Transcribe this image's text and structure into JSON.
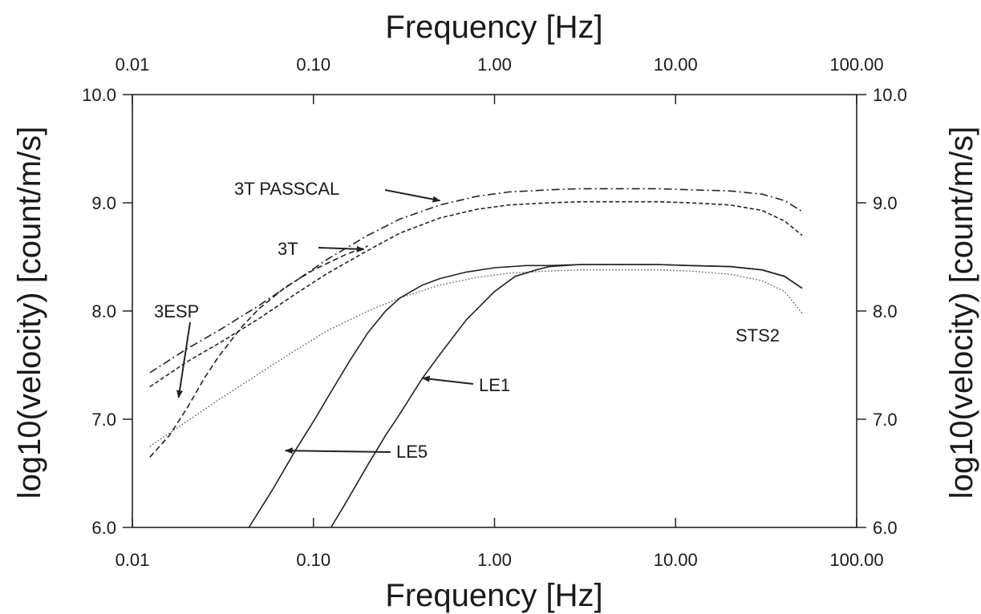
{
  "chart_data": {
    "type": "line",
    "xscale": "log",
    "xlim": [
      0.01,
      100
    ],
    "ylim": [
      6.0,
      10.0
    ],
    "grid": false,
    "x_ticks": [
      0.01,
      0.1,
      1,
      10,
      100
    ],
    "x_tick_labels": [
      "0.01",
      "0.10",
      "1.00",
      "10.00",
      "100.00"
    ],
    "y_ticks": [
      6,
      7,
      8,
      9,
      10
    ],
    "y_tick_labels": [
      "6.0",
      "7.0",
      "8.0",
      "9.0",
      "10.0"
    ],
    "xlabel": "Frequency [Hz]",
    "xlabel_top": "Frequency [Hz]",
    "ylabel": "log10(velocity) [count/m/s]",
    "ylabel_right": "log10(velocity) [count/m/s]",
    "series": [
      {
        "name": "3T PASSCAL",
        "line": "dashdot",
        "color": "#222222",
        "x": [
          0.0125,
          0.02,
          0.03,
          0.05,
          0.08,
          0.12,
          0.2,
          0.3,
          0.5,
          0.8,
          1.2,
          2,
          3,
          5,
          8,
          12,
          20,
          30,
          40,
          50
        ],
        "y": [
          7.43,
          7.65,
          7.82,
          8.05,
          8.28,
          8.48,
          8.7,
          8.85,
          8.98,
          9.06,
          9.1,
          9.12,
          9.13,
          9.13,
          9.13,
          9.12,
          9.11,
          9.08,
          9.02,
          8.92
        ]
      },
      {
        "name": "3T",
        "line": "dashed-fine",
        "color": "#222222",
        "x": [
          0.0125,
          0.02,
          0.03,
          0.05,
          0.08,
          0.12,
          0.2,
          0.3,
          0.5,
          0.8,
          1.2,
          2,
          3,
          5,
          8,
          12,
          20,
          30,
          40,
          50
        ],
        "y": [
          7.3,
          7.53,
          7.7,
          7.93,
          8.16,
          8.35,
          8.56,
          8.72,
          8.86,
          8.94,
          8.98,
          9.0,
          9.01,
          9.01,
          9.01,
          9.0,
          8.98,
          8.93,
          8.83,
          8.7
        ]
      },
      {
        "name": "3ESP",
        "line": "dashed",
        "color": "#222222",
        "x": [
          0.0125,
          0.016,
          0.02,
          0.025,
          0.03,
          0.04,
          0.05,
          0.07,
          0.1,
          0.15,
          0.2
        ],
        "y": [
          6.65,
          6.85,
          7.1,
          7.38,
          7.58,
          7.85,
          8.02,
          8.22,
          8.38,
          8.52,
          8.6
        ]
      },
      {
        "name": "STS2",
        "line": "dotted",
        "color": "#555555",
        "x": [
          0.0125,
          0.02,
          0.03,
          0.05,
          0.08,
          0.12,
          0.2,
          0.3,
          0.5,
          0.8,
          1.2,
          2,
          3,
          5,
          8,
          12,
          20,
          30,
          40,
          50
        ],
        "y": [
          6.75,
          6.98,
          7.18,
          7.42,
          7.64,
          7.82,
          8.0,
          8.12,
          8.24,
          8.31,
          8.35,
          8.37,
          8.38,
          8.38,
          8.38,
          8.37,
          8.34,
          8.28,
          8.18,
          7.98
        ]
      },
      {
        "name": "LE5",
        "line": "solid",
        "color": "#222222",
        "x": [
          0.044,
          0.06,
          0.08,
          0.1,
          0.13,
          0.16,
          0.2,
          0.25,
          0.3,
          0.4,
          0.5,
          0.7,
          1.0,
          1.5,
          2,
          3,
          5,
          8,
          12,
          20,
          30,
          40,
          50
        ],
        "y": [
          6.0,
          6.36,
          6.72,
          6.98,
          7.3,
          7.55,
          7.8,
          8.0,
          8.12,
          8.24,
          8.3,
          8.36,
          8.4,
          8.42,
          8.42,
          8.43,
          8.43,
          8.43,
          8.42,
          8.41,
          8.38,
          8.32,
          8.21
        ]
      },
      {
        "name": "LE1",
        "line": "solid",
        "color": "#222222",
        "x": [
          0.125,
          0.15,
          0.2,
          0.25,
          0.3,
          0.4,
          0.5,
          0.7,
          1.0,
          1.3,
          1.7,
          2,
          3,
          5,
          8,
          12,
          20,
          30,
          40,
          50
        ],
        "y": [
          6.0,
          6.22,
          6.58,
          6.85,
          7.05,
          7.38,
          7.6,
          7.92,
          8.18,
          8.32,
          8.38,
          8.41,
          8.43,
          8.43,
          8.43,
          8.42,
          8.41,
          8.38,
          8.32,
          8.21
        ]
      }
    ],
    "annotations": [
      {
        "text": "3T PASSCAL",
        "target": [
          0.5,
          9.02
        ]
      },
      {
        "text": "3T",
        "target": [
          0.19,
          8.57
        ]
      },
      {
        "text": "3ESP",
        "target": [
          0.018,
          7.2
        ]
      },
      {
        "text": "LE5",
        "target": [
          0.07,
          6.71
        ]
      },
      {
        "text": "LE1",
        "target": [
          0.4,
          7.38
        ]
      },
      {
        "text": "STS2",
        "target": null
      }
    ]
  }
}
